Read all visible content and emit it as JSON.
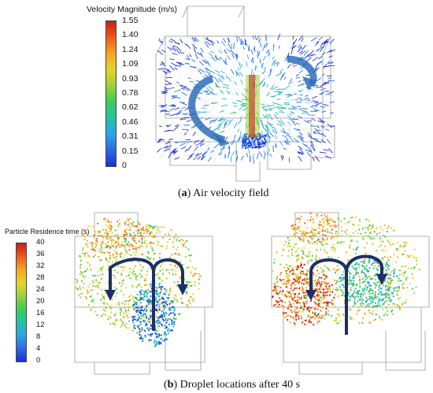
{
  "panel_a": {
    "colorbar_title": "Velocity Magnitude (m/s)",
    "ticks": [
      "1.55",
      "1.40",
      "1.24",
      "1.09",
      "0.93",
      "0.78",
      "0.62",
      "0.46",
      "0.31",
      "0.15",
      "0"
    ],
    "caption_letter": "a",
    "caption_text": "Air velocity field",
    "colors": [
      "#c81e14",
      "#f05a1e",
      "#f5a523",
      "#e8d22a",
      "#9bd23a",
      "#3ccd55",
      "#22c3a5",
      "#2aa5e6",
      "#2d6ae0",
      "#1e2fd6"
    ]
  },
  "panel_b": {
    "colorbar_title": "Particle Residence time (s)",
    "ticks": [
      "40",
      "36",
      "32",
      "28",
      "24",
      "20",
      "16",
      "12",
      "8",
      "4",
      "0"
    ],
    "caption_letter": "b",
    "caption_text": "Droplet locations after 40 s",
    "colors": [
      "#c81e14",
      "#f05a1e",
      "#f5a523",
      "#e8d22a",
      "#9bd23a",
      "#3ccd55",
      "#22c3a5",
      "#2aa5e6",
      "#2d6ae0",
      "#1e2fd6"
    ]
  }
}
